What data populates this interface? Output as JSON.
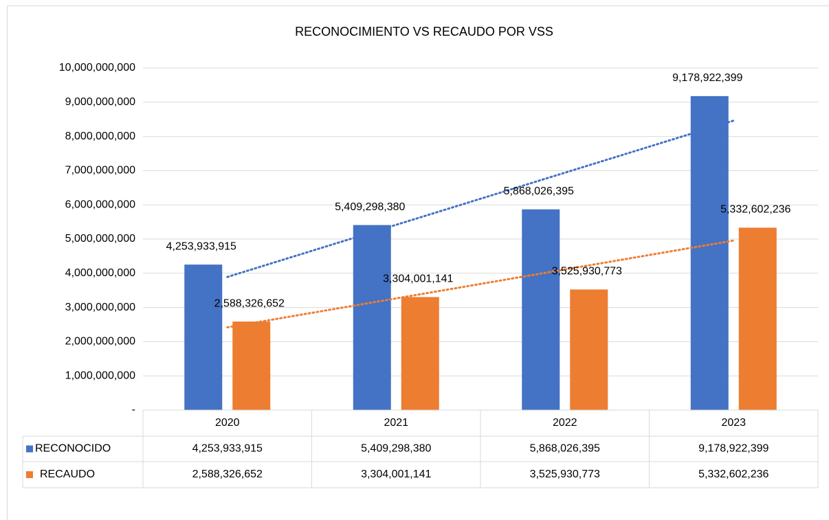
{
  "chart_data": {
    "type": "bar",
    "title": "RECONOCIMIENTO VS RECAUDO POR VSS",
    "categories": [
      "2020",
      "2021",
      "2022",
      "2023"
    ],
    "series": [
      {
        "name": "RECONOCIDO",
        "color": "#4472c4",
        "trendline": "linear",
        "values": [
          4253933915,
          5409298380,
          5868026395,
          9178922399
        ],
        "value_labels": [
          "4,253,933,915",
          "5,409,298,380",
          "5,868,026,395",
          "9,178,922,399"
        ]
      },
      {
        "name": "RECAUDO",
        "color": "#ed7d31",
        "trendline": "linear",
        "values": [
          2588326652,
          3304001141,
          3525930773,
          5332602236
        ],
        "value_labels": [
          "2,588,326,652",
          "3,304,001,141",
          "3,525,930,773",
          "5,332,602,236"
        ]
      }
    ],
    "ylim": [
      0,
      10000000000
    ],
    "yticks": [
      {
        "value": 0,
        "label": "-"
      },
      {
        "value": 1000000000,
        "label": "1,000,000,000"
      },
      {
        "value": 2000000000,
        "label": "2,000,000,000"
      },
      {
        "value": 3000000000,
        "label": "3,000,000,000"
      },
      {
        "value": 4000000000,
        "label": "4,000,000,000"
      },
      {
        "value": 5000000000,
        "label": "5,000,000,000"
      },
      {
        "value": 6000000000,
        "label": "6,000,000,000"
      },
      {
        "value": 7000000000,
        "label": "7,000,000,000"
      },
      {
        "value": 8000000000,
        "label": "8,000,000,000"
      },
      {
        "value": 9000000000,
        "label": "9,000,000,000"
      },
      {
        "value": 10000000000,
        "label": "10,000,000,000"
      }
    ],
    "grid": true,
    "data_table": true
  }
}
